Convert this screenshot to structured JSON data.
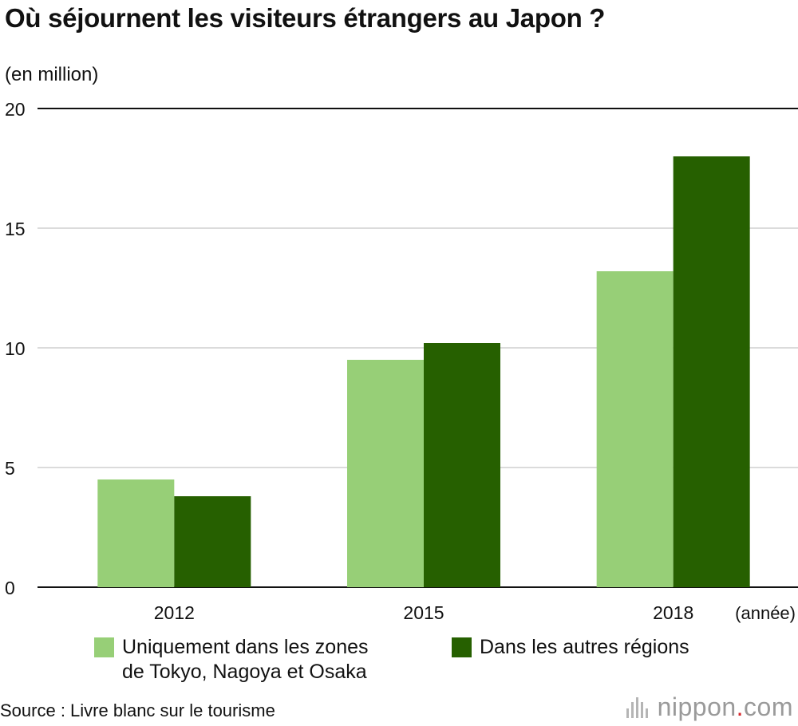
{
  "title": "Où séjournent les visiteurs étrangers au Japon ?",
  "unit_label": "(en million)",
  "chart_data": {
    "type": "bar",
    "categories": [
      "2012",
      "2015",
      "2018"
    ],
    "series": [
      {
        "name": "Uniquement dans les zones\nde Tokyo, Nagoya et Osaka",
        "color": "#97cf77",
        "values": [
          4.5,
          9.5,
          13.2
        ]
      },
      {
        "name": "Dans les autres régions",
        "color": "#266000",
        "values": [
          3.8,
          10.2,
          18.0
        ]
      }
    ],
    "ylim": [
      0,
      20
    ],
    "yticks": [
      "0",
      "5",
      "10",
      "15",
      "20"
    ],
    "ytick_values": [
      0,
      5,
      10,
      15,
      20
    ],
    "xlabel": "(année)",
    "ylabel": "(en million)",
    "grid": true,
    "legend_position": "bottom"
  },
  "source": "Source : Livre blanc sur le tourisme",
  "logo": {
    "name": "nippon",
    "dot": ".",
    "suffix": "com",
    "accent": "#d7262b"
  }
}
